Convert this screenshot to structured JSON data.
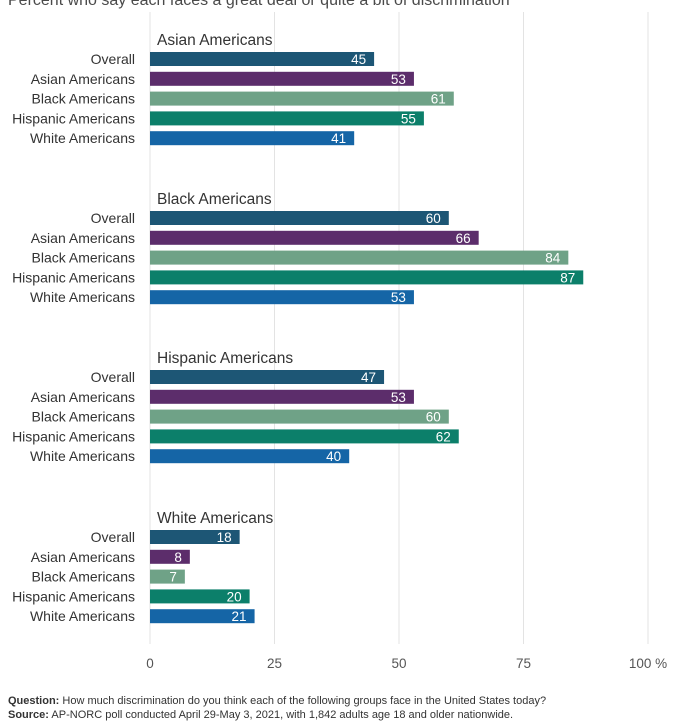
{
  "subtitle": "Percent who say each faces a great deal or quite a bit of discrimination",
  "footnote": {
    "question_label": "Question:",
    "question_text": "How much discrimination do you think each of the following groups face in the United States today?",
    "source_label": "Source:",
    "source_text": "AP-NORC poll conducted April 29-May 3, 2021, with 1,842 adults age 18 and older nationwide."
  },
  "chart_data": {
    "type": "bar",
    "orientation": "horizontal",
    "subtitle": "Percent who say each faces a great deal or quite a bit of discrimination",
    "xlim": [
      0,
      100
    ],
    "x_ticks": [
      0,
      25,
      50,
      75,
      100
    ],
    "x_tick_labels": [
      "0",
      "25",
      "50",
      "75",
      "100 %"
    ],
    "grid": true,
    "respondent_categories": [
      "Overall",
      "Asian Americans",
      "Black Americans",
      "Hispanic Americans",
      "White Americans"
    ],
    "colors": [
      "#1d5675",
      "#5c2d6b",
      "#6fa287",
      "#0c7f6a",
      "#1565a6"
    ],
    "groups": [
      {
        "title": "Asian Americans",
        "values": [
          45,
          53,
          61,
          55,
          41
        ]
      },
      {
        "title": "Black Americans",
        "values": [
          60,
          66,
          84,
          87,
          53
        ]
      },
      {
        "title": "Hispanic Americans",
        "values": [
          47,
          53,
          60,
          62,
          40
        ]
      },
      {
        "title": "White Americans",
        "values": [
          18,
          8,
          7,
          20,
          21
        ]
      }
    ]
  }
}
